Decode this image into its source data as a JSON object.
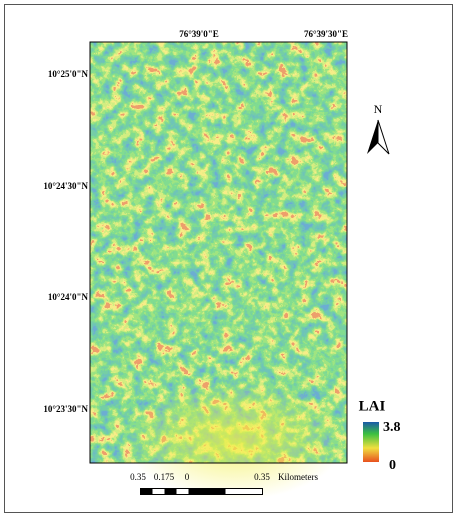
{
  "map": {
    "top_labels": [
      "76°39'0\"E",
      "76°39'30\"E"
    ],
    "left_labels": [
      "10°25'0\"N",
      "10°24'30\"N",
      "10°24'0\"N",
      "10°23'30\"N"
    ],
    "north": "N",
    "legend": {
      "title": "LAI",
      "max": "3.8",
      "min": "0"
    },
    "scale_bar": {
      "labels": [
        "0.35",
        "0.175",
        "0",
        "0.35"
      ],
      "unit": "Kilometers"
    }
  }
}
